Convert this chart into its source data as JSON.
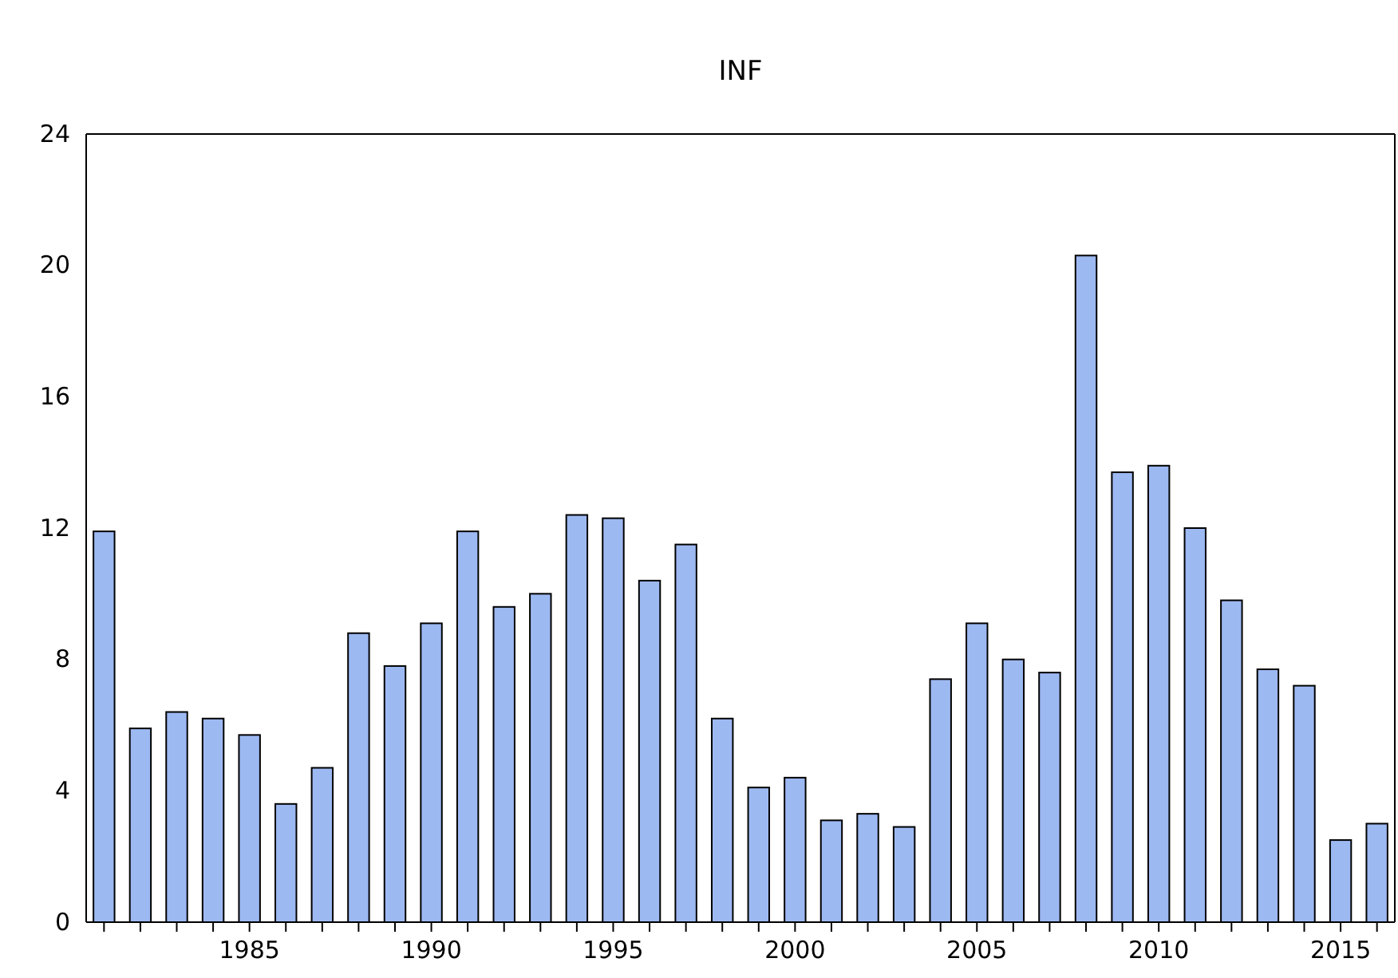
{
  "chart_data": {
    "type": "bar",
    "title": "INF",
    "categories": [
      null,
      null,
      null,
      null,
      "1985",
      null,
      null,
      null,
      null,
      "1990",
      null,
      null,
      null,
      null,
      "1995",
      null,
      null,
      null,
      null,
      "2000",
      null,
      null,
      null,
      null,
      "2005",
      null,
      null,
      null,
      null,
      "2010",
      null,
      null,
      null,
      null,
      "2015",
      null
    ],
    "values": [
      11.9,
      5.9,
      6.4,
      6.2,
      5.7,
      3.6,
      4.7,
      8.8,
      7.8,
      9.1,
      11.9,
      9.6,
      10.0,
      12.4,
      12.3,
      10.4,
      11.5,
      6.2,
      4.1,
      4.4,
      3.1,
      3.3,
      2.9,
      7.4,
      9.1,
      8.0,
      7.6,
      20.3,
      13.7,
      13.9,
      12.0,
      9.8,
      7.7,
      7.2,
      2.5,
      3.0
    ],
    "color": "#9db9f2",
    "ylim": [
      0,
      24
    ],
    "yticks": [
      0,
      4,
      8,
      12,
      16,
      20,
      24
    ],
    "grid": false
  }
}
